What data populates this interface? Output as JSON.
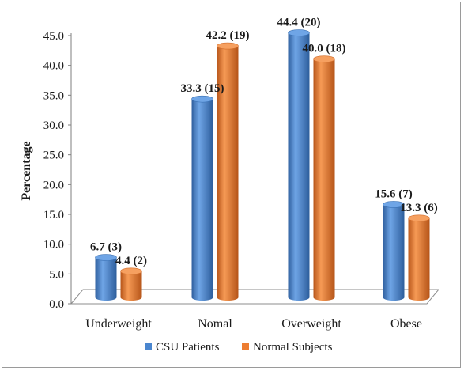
{
  "chart_data": {
    "type": "bar",
    "categories": [
      "Underweight",
      "Nomal",
      "Overweight",
      "Obese"
    ],
    "series": [
      {
        "name": "CSU Patients",
        "values": [
          6.7,
          33.3,
          44.4,
          15.6
        ],
        "labels": [
          "6.7 (3)",
          "33.3 (15)",
          "44.4 (20)",
          "15.6 (7)"
        ],
        "color": "#4a86cf"
      },
      {
        "name": "Normal Subjects",
        "values": [
          4.4,
          42.2,
          40.0,
          13.3
        ],
        "labels": [
          "4.4 (2)",
          "42.2 (19)",
          "40.0 (18)",
          "13.3 (6)"
        ],
        "color": "#ed7d31"
      }
    ],
    "xlabel": "",
    "ylabel": "Percentage",
    "ylim": [
      0,
      45
    ],
    "yticks": [
      "0.0",
      "5.0",
      "10.0",
      "15.0",
      "20.0",
      "25.0",
      "30.0",
      "35.0",
      "40.0",
      "45.0"
    ],
    "grid": false,
    "legend_position": "bottom",
    "style": "3d-cylinder"
  }
}
